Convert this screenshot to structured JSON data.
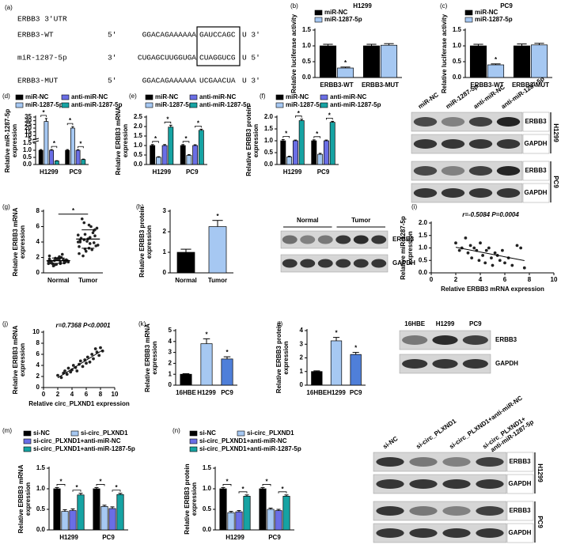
{
  "sequence": {
    "panel": "(a)",
    "title": "ERBB3 3'UTR",
    "rows": [
      {
        "name": "ERBB3-WT",
        "end5": "5'",
        "left": "GGACAGAAAAAA",
        "site": "GAUCCAGC",
        "end3": "U 3'"
      },
      {
        "name": "miR-1287-5p",
        "end5": "3'",
        "left": "CUGAGCUUGGUGA",
        "site": "CUAGGUCG",
        "end3": "U 5'"
      },
      {
        "name": "ERBB3-MUT",
        "end5": "5'",
        "left": "GGACAGAAAAAA",
        "site": "UCGAACUA",
        "end3": "U 3'"
      }
    ]
  },
  "blots": [
    {
      "lanes": [
        "miR-NC",
        "miR-1287-5p",
        "anti-miR-NC",
        "anti-miR-1287-5p"
      ],
      "rows": [
        "ERBB3",
        "GAPDH",
        "ERBB3",
        "GAPDH"
      ],
      "groups": [
        "H1299",
        "PC9"
      ]
    },
    {
      "lane_groups": [
        "Normal",
        "Tumor"
      ],
      "rows": [
        "ERBB3",
        "GAPDH"
      ]
    },
    {
      "lanes": [
        "16HBE",
        "H1299",
        "PC9"
      ],
      "rows": [
        "ERBB3",
        "GAPDH"
      ]
    },
    {
      "lanes": [
        "si-NC",
        "si-circ_PLXND1",
        "si-circ_PLXND1+anti-miR-NC",
        [
          "si-circ_PLXND1+",
          "anti-miR-1287-5p"
        ]
      ],
      "rows": [
        "ERBB3",
        "GAPDH",
        "ERBB3",
        "GAPDH"
      ],
      "groups": [
        "H1299",
        "PC9"
      ]
    }
  ],
  "chart_data": [
    {
      "type": "bar",
      "panel": "(b)",
      "title": "H1299",
      "ylabel": [
        "Relative luciferase activity"
      ],
      "annotation": "*",
      "categories": [
        "ERBB3-WT",
        "ERBB3-MUT"
      ],
      "ylim": [
        0,
        1.5
      ],
      "yticks": [
        {
          "value": 0,
          "label": "0.0"
        },
        0.5,
        {
          "value": 1,
          "label": "1.0"
        },
        1.5
      ],
      "series": [
        {
          "name": "miR-NC",
          "color": "#000000",
          "values": [
            1.0,
            1.0
          ],
          "errors": [
            0.05,
            0.05
          ]
        },
        {
          "name": "miR-1287-5p",
          "color": "#a6c8f2",
          "values": [
            0.3,
            1.02
          ],
          "errors": [
            0.03,
            0.05
          ],
          "starred": [
            true,
            false
          ]
        }
      ]
    },
    {
      "type": "bar",
      "panel": "(c)",
      "title": "PC9",
      "ylabel": [
        "Relative luciferase activity"
      ],
      "annotation": "*",
      "categories": [
        "ERBB3-WT",
        "ERBB3-MUT"
      ],
      "ylim": [
        0,
        1.5
      ],
      "yticks": [
        {
          "value": 0,
          "label": "0.0"
        },
        0.5,
        {
          "value": 1,
          "label": "1.0"
        },
        1.5
      ],
      "series": [
        {
          "name": "miR-NC",
          "color": "#000000",
          "values": [
            1.0,
            1.0
          ],
          "errors": [
            0.05,
            0.06
          ]
        },
        {
          "name": "miR-1287-5p",
          "color": "#a6c8f2",
          "values": [
            0.4,
            1.03
          ],
          "errors": [
            0.03,
            0.05
          ],
          "starred": [
            true,
            false
          ]
        }
      ]
    },
    {
      "type": "bar",
      "panel": "(d)",
      "ylabel": [
        "Relative miR-1287-5p",
        "expression"
      ],
      "annotation": "*",
      "brackets": true,
      "categories": [
        "H1299",
        "PC9"
      ],
      "ylim": [
        0,
        35
      ],
      "ybreak": [
        1.5,
        5
      ],
      "yticks": [
        {
          "value": 0,
          "label": "0.0"
        },
        0.5,
        {
          "value": 1,
          "label": "1.0"
        },
        1.5,
        5,
        10,
        15,
        20,
        25,
        30,
        35
      ],
      "series": [
        {
          "name": "miR-NC",
          "color": "#000000",
          "values": [
            1.0,
            1.0
          ],
          "errors": [
            0.05,
            0.05
          ]
        },
        {
          "name": "miR-1287-5p",
          "color": "#a6c8f2",
          "values": [
            29,
            20
          ],
          "errors": [
            4,
            2
          ],
          "starred": [
            true,
            true
          ]
        },
        {
          "name": "anti-miR-NC",
          "color": "#6a6ee6",
          "values": [
            1.0,
            1.0
          ],
          "errors": [
            0.05,
            0.04
          ]
        },
        {
          "name": "anti-miR-1287-5p",
          "color": "#16a3a3",
          "values": [
            0.25,
            0.35
          ],
          "errors": [
            0.02,
            0.03
          ],
          "starred": [
            true,
            true
          ]
        }
      ]
    },
    {
      "type": "bar",
      "panel": "(e)",
      "ylabel": [
        "Relative ERBB3 mRNA",
        "expression"
      ],
      "annotation": "*",
      "brackets": true,
      "categories": [
        "H1299",
        "PC9"
      ],
      "ylim": [
        0,
        2.5
      ],
      "yticks": [
        {
          "value": 0,
          "label": "0.0"
        },
        0.5,
        {
          "value": 1,
          "label": "1.0"
        },
        1.5,
        {
          "value": 2,
          "label": "2.0"
        },
        2.5
      ],
      "series": [
        {
          "name": "miR-NC",
          "color": "#000000",
          "values": [
            1.0,
            1.0
          ],
          "errors": [
            0.05,
            0.05
          ]
        },
        {
          "name": "miR-1287-5p",
          "color": "#a6c8f2",
          "values": [
            0.38,
            0.48
          ],
          "errors": [
            0.03,
            0.04
          ],
          "starred": [
            true,
            true
          ]
        },
        {
          "name": "anti-miR-NC",
          "color": "#6a6ee6",
          "values": [
            1.0,
            1.0
          ],
          "errors": [
            0.05,
            0.04
          ]
        },
        {
          "name": "anti-miR-1287-5p",
          "color": "#16a3a3",
          "values": [
            1.97,
            1.8
          ],
          "errors": [
            0.1,
            0.06
          ],
          "starred": [
            true,
            true
          ]
        }
      ]
    },
    {
      "type": "bar",
      "panel": "(f)",
      "ylabel": [
        "Relative ERBB3 protein",
        "expression"
      ],
      "annotation": "*",
      "brackets": true,
      "categories": [
        "H1299",
        "PC9"
      ],
      "ylim": [
        0,
        2.0
      ],
      "yticks": [
        {
          "value": 0,
          "label": "0.0"
        },
        0.5,
        {
          "value": 1,
          "label": "1.0"
        },
        1.5,
        {
          "value": 2,
          "label": "2.0"
        }
      ],
      "series": [
        {
          "name": "miR-NC",
          "color": "#000000",
          "values": [
            1.0,
            1.0
          ],
          "errors": [
            0.05,
            0.04
          ]
        },
        {
          "name": "miR-1287-5p",
          "color": "#a6c8f2",
          "values": [
            0.32,
            0.43
          ],
          "errors": [
            0.03,
            0.04
          ],
          "starred": [
            true,
            true
          ]
        },
        {
          "name": "anti-miR-NC",
          "color": "#6a6ee6",
          "values": [
            1.0,
            1.0
          ],
          "errors": [
            0.03,
            0.03
          ]
        },
        {
          "name": "anti-miR-1287-5p",
          "color": "#16a3a3",
          "values": [
            1.85,
            1.78
          ],
          "errors": [
            0.06,
            0.04
          ],
          "starred": [
            true,
            true
          ]
        }
      ]
    },
    {
      "type": "strip",
      "panel": "(g)",
      "ylabel": [
        "Relative ERBB3 mRNA",
        "expression"
      ],
      "annotation": "*",
      "brackets": true,
      "categories": [
        "Normal",
        "Tumor"
      ],
      "starred": [
        false,
        true
      ],
      "ylim": [
        0,
        8
      ],
      "yticks": [
        0,
        2,
        4,
        6,
        8
      ],
      "values": [
        [
          1.2,
          1.5,
          1.8,
          1.0,
          2.2,
          1.6,
          1.4,
          1.9,
          1.3,
          1.7,
          2.0,
          1.1,
          1.5,
          1.6,
          2.4,
          1.8,
          1.2,
          1.4,
          1.7,
          1.9,
          0.9,
          1.5,
          1.3,
          2.1,
          1.6,
          1.8,
          1.4,
          1.2,
          1.7,
          1.5
        ],
        [
          4.0,
          5.5,
          3.2,
          6.5,
          2.5,
          4.8,
          3.8,
          5.0,
          4.2,
          3.5,
          6.0,
          2.8,
          4.5,
          5.8,
          3.0,
          4.1,
          7.0,
          3.6,
          5.2,
          4.4,
          2.2,
          4.9,
          3.9,
          6.2,
          4.3,
          3.4,
          5.6,
          4.6,
          3.1,
          4.0
        ]
      ]
    },
    {
      "type": "bar",
      "panel": "(h)",
      "ylabel": [
        "Relative ERBB3 protein",
        "expression"
      ],
      "annotation": "*",
      "categories": [
        "Normal",
        "Tumor"
      ],
      "values": [
        1.0,
        2.25
      ],
      "errors": [
        0.15,
        0.3
      ],
      "colors": [
        "#000000",
        "#a6c8f2"
      ],
      "starred": [
        false,
        true
      ],
      "ylim": [
        0,
        3
      ],
      "yticks": [
        0,
        1,
        2,
        3
      ]
    },
    {
      "type": "scatter",
      "panel": "(i)",
      "annotation": "r=-0.5084 P=0.0004",
      "ylabel": [
        "Relative miR-1287-5p",
        "expression"
      ],
      "xlabel": "Relative ERBB3 mRNA expression",
      "xlim": [
        0,
        10
      ],
      "xticks": [
        0,
        2,
        4,
        6,
        8,
        10
      ],
      "ylim": [
        0,
        2
      ],
      "yticks": [
        {
          "value": 0,
          "label": "0.0"
        },
        0.5,
        {
          "value": 1,
          "label": "1.0"
        },
        1.5,
        {
          "value": 2,
          "label": "2.0"
        }
      ],
      "x": [
        2.0,
        2.3,
        2.5,
        2.8,
        3.0,
        3.2,
        3.3,
        3.5,
        3.7,
        3.9,
        4.0,
        4.2,
        4.4,
        4.5,
        4.7,
        4.9,
        5.0,
        5.2,
        5.4,
        5.6,
        5.8,
        6.0,
        6.3,
        6.6,
        7.0,
        7.3,
        7.6
      ],
      "values": [
        1.2,
        0.9,
        1.0,
        1.4,
        0.8,
        1.1,
        0.6,
        1.0,
        0.9,
        0.5,
        1.2,
        0.7,
        0.4,
        0.9,
        1.0,
        0.6,
        0.3,
        0.8,
        0.7,
        0.5,
        0.9,
        0.4,
        0.6,
        0.3,
        1.1,
        1.0,
        0.2
      ]
    },
    {
      "type": "scatter",
      "panel": "(j)",
      "annotation": "r=0.7368 P<0.0001",
      "ylabel": [
        "Relative ERBB3 mRNA",
        "expression"
      ],
      "xlabel": "Relative circ_PLXND1 expression",
      "xlim": [
        0,
        10
      ],
      "xticks": [
        0,
        2,
        4,
        6,
        8,
        10
      ],
      "ylim": [
        0,
        10
      ],
      "yticks": [
        0,
        2,
        4,
        6,
        8,
        10
      ],
      "x": [
        2.0,
        2.5,
        2.8,
        3.0,
        3.3,
        3.5,
        3.8,
        4.0,
        4.2,
        4.5,
        4.7,
        5.0,
        5.2,
        5.5,
        5.8,
        6.0,
        6.2,
        6.5,
        6.8,
        7.0,
        7.3,
        7.5,
        7.8,
        8.0,
        8.3
      ],
      "values": [
        2.2,
        1.8,
        2.6,
        3.0,
        2.4,
        3.5,
        2.8,
        3.2,
        4.0,
        3.6,
        3.0,
        4.2,
        4.8,
        3.8,
        5.0,
        4.4,
        5.5,
        4.6,
        6.0,
        5.2,
        7.0,
        6.4,
        5.8,
        7.2,
        6.6
      ]
    },
    {
      "type": "bar",
      "panel": "(k)",
      "ylabel": [
        "Relative ERBB3 mRNA",
        "expression"
      ],
      "annotation": "*",
      "categories": [
        "16HBE",
        "H1299",
        "PC9"
      ],
      "values": [
        1.0,
        3.8,
        2.4
      ],
      "errors": [
        0.05,
        0.45,
        0.2
      ],
      "colors": [
        "#000000",
        "#a6c8f2",
        "#4f7fd9"
      ],
      "starred": [
        false,
        true,
        true
      ],
      "ylim": [
        0,
        5
      ],
      "yticks": [
        0,
        1,
        2,
        3,
        4,
        5
      ]
    },
    {
      "type": "bar",
      "panel": "(l)",
      "ylabel": [
        "Relative ERBB3 protein",
        "expression"
      ],
      "annotation": "*",
      "categories": [
        "16HBE",
        "H1299",
        "PC9"
      ],
      "values": [
        1.0,
        3.25,
        2.25
      ],
      "errors": [
        0.05,
        0.25,
        0.15
      ],
      "colors": [
        "#000000",
        "#a6c8f2",
        "#4f7fd9"
      ],
      "starred": [
        false,
        true,
        true
      ],
      "ylim": [
        0,
        4
      ],
      "yticks": [
        0,
        1,
        2,
        3,
        4
      ]
    },
    {
      "type": "bar",
      "panel": "(m)",
      "ylabel": [
        "Relative ERBB3 mRNA",
        "expression"
      ],
      "annotation": "*",
      "brackets": true,
      "categories": [
        "H1299",
        "PC9"
      ],
      "ylim": [
        0,
        1.5
      ],
      "yticks": [
        {
          "value": 0,
          "label": "0.0"
        },
        0.5,
        {
          "value": 1,
          "label": "1.0"
        },
        1.5
      ],
      "series": [
        {
          "name": "si-NC",
          "color": "#000000",
          "values": [
            1.0,
            1.0
          ],
          "errors": [
            0.03,
            0.03
          ]
        },
        {
          "name": "si-circ_PLXND1",
          "color": "#a6c8f2",
          "values": [
            0.45,
            0.57
          ],
          "errors": [
            0.04,
            0.03
          ],
          "starred": [
            true,
            true
          ]
        },
        {
          "name": "si-circ_PLXND1+anti-miR-NC",
          "color": "#6a6ee6",
          "values": [
            0.47,
            0.52
          ],
          "errors": [
            0.04,
            0.04
          ]
        },
        {
          "name": "si-circ_PLXND1+anti-miR-1287-5p",
          "color": "#16a3a3",
          "values": [
            0.85,
            0.86
          ],
          "errors": [
            0.04,
            0.03
          ],
          "starred": [
            true,
            true
          ]
        }
      ]
    },
    {
      "type": "bar",
      "panel": "(n)",
      "ylabel": [
        "Relative ERBB3 protein",
        "expression"
      ],
      "annotation": "*",
      "brackets": true,
      "categories": [
        "H1299",
        "PC9"
      ],
      "ylim": [
        0,
        1.5
      ],
      "yticks": [
        {
          "value": 0,
          "label": "0.0"
        },
        0.5,
        {
          "value": 1,
          "label": "1.0"
        },
        1.5
      ],
      "series": [
        {
          "name": "si-NC",
          "color": "#000000",
          "values": [
            1.0,
            1.0
          ],
          "errors": [
            0.03,
            0.03
          ]
        },
        {
          "name": "si-circ_PLXND1",
          "color": "#a6c8f2",
          "values": [
            0.42,
            0.5
          ],
          "errors": [
            0.03,
            0.03
          ],
          "starred": [
            true,
            true
          ]
        },
        {
          "name": "si-circ_PLXND1+anti-miR-NC",
          "color": "#6a6ee6",
          "values": [
            0.44,
            0.47
          ],
          "errors": [
            0.03,
            0.03
          ]
        },
        {
          "name": "si-circ_PLXND1+anti-miR-1287-5p",
          "color": "#16a3a3",
          "values": [
            0.82,
            0.82
          ],
          "errors": [
            0.03,
            0.03
          ],
          "starred": [
            true,
            true
          ]
        }
      ]
    }
  ]
}
